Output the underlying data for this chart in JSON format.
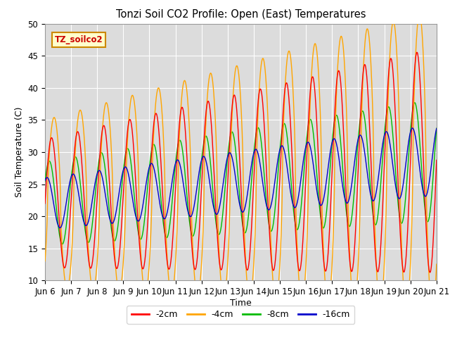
{
  "title": "Tonzi Soil CO2 Profile: Open (East) Temperatures",
  "ylabel": "Soil Temperature (C)",
  "xlabel": "Time",
  "ylim": [
    10,
    50
  ],
  "background_color": "#dcdcdc",
  "colors": {
    "neg2cm": "#ff0000",
    "neg4cm": "#ffa500",
    "neg8cm": "#00bb00",
    "neg16cm": "#0000cc"
  },
  "legend_labels": [
    "-2cm",
    "-4cm",
    "-8cm",
    "-16cm"
  ],
  "legend_box_label": "TZ_soilco2",
  "xtick_labels": [
    "Jun 6",
    "Jun 7",
    "Jun 8",
    "Jun 9",
    "Jun 10",
    "Jun 11",
    "Jun 12",
    "Jun 13",
    "Jun 14",
    "Jun 15",
    "Jun 16",
    "Jun 17",
    "Jun 18",
    "Jun 19",
    "Jun 20",
    "Jun 21"
  ],
  "grid_color": "#ffffff",
  "num_points": 1500
}
